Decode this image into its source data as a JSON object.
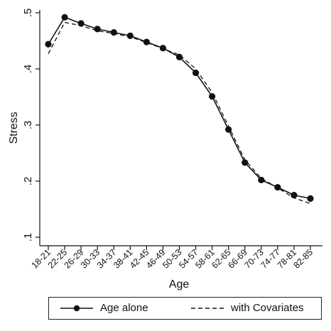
{
  "chart_data": {
    "type": "line",
    "title": "",
    "xlabel": "Age",
    "ylabel": "Stress",
    "categories": [
      "18-21",
      "22-25",
      "26-29",
      "30-33",
      "34-37",
      "38-41",
      "42-45",
      "46-49",
      "50-53",
      "54-57",
      "58-61",
      "62-65",
      "66-69",
      "70-73",
      "74-77",
      "78-81",
      "82-85"
    ],
    "ylim": [
      0.1,
      0.5
    ],
    "yticks": [
      0.1,
      0.2,
      0.3,
      0.4,
      0.5
    ],
    "ytick_labels": [
      ".1",
      ".2",
      ".3",
      ".4",
      ".5"
    ],
    "grid": false,
    "legend_position": "bottom",
    "series": [
      {
        "name": "Age alone",
        "style": "solid-with-markers",
        "color": "#111111",
        "values": [
          0.444,
          0.492,
          0.481,
          0.471,
          0.465,
          0.459,
          0.448,
          0.437,
          0.421,
          0.393,
          0.351,
          0.292,
          0.233,
          0.202,
          0.189,
          0.175,
          0.169
        ]
      },
      {
        "name": "with Covariates",
        "style": "dashed",
        "color": "#111111",
        "values": [
          0.427,
          0.483,
          0.477,
          0.468,
          0.463,
          0.457,
          0.447,
          0.436,
          0.425,
          0.4,
          0.358,
          0.298,
          0.238,
          0.205,
          0.188,
          0.17,
          0.16
        ]
      }
    ]
  }
}
